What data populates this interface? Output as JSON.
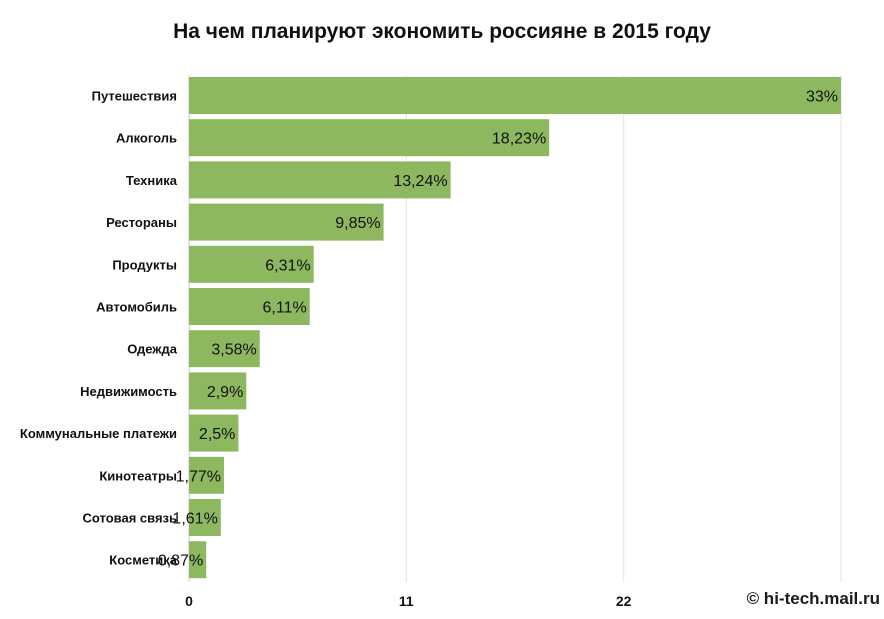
{
  "chart_data": {
    "type": "bar",
    "orientation": "horizontal",
    "title": "На чем планируют экономить россияне в 2015 году",
    "categories": [
      "Путешествия",
      "Алкоголь",
      "Техника",
      "Рестораны",
      "Продукты",
      "Автомобиль",
      "Одежда",
      "Недвижимость",
      "Коммунальные платежи",
      "Кинотеатры",
      "Сотовая связь",
      "Косметика"
    ],
    "values": [
      33,
      18.23,
      13.24,
      9.85,
      6.31,
      6.11,
      3.58,
      2.9,
      2.5,
      1.77,
      1.61,
      0.87
    ],
    "value_labels": [
      "33%",
      "18,23%",
      "13,24%",
      "9,85%",
      "6,31%",
      "6,11%",
      "3,58%",
      "2,9%",
      "2,5%",
      "1,77%",
      "1,61%",
      "0,87%"
    ],
    "x_ticks": [
      "0",
      "11",
      "22"
    ],
    "xlim": [
      0,
      33
    ],
    "grid": true,
    "bar_color": "#8db85f",
    "gridline_color": "#e3e3e3"
  },
  "watermark": "© hi-tech.mail.ru"
}
